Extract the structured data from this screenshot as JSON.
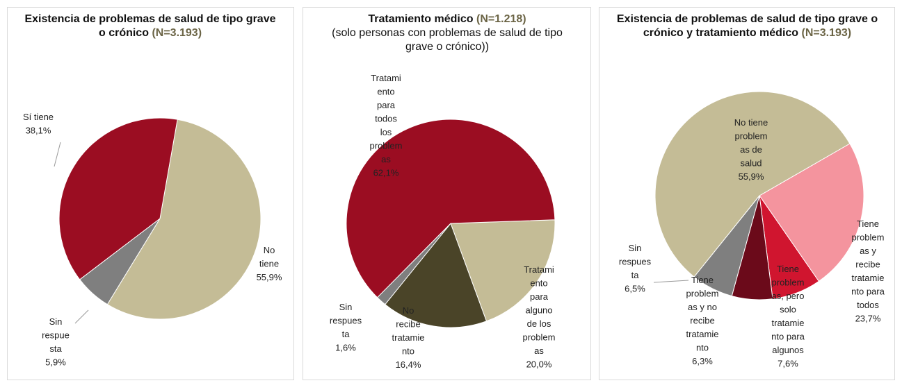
{
  "chart_data": [
    {
      "type": "pie",
      "title": "Existencia de problemas de salud de tipo grave o crónico",
      "sample": "(N=3.193)",
      "categories": [
        "No tiene",
        "Sin respuesta",
        "Sí tiene"
      ],
      "values": [
        55.9,
        5.9,
        38.1
      ],
      "value_labels": [
        "55,9%",
        "5,9%",
        "38,1%"
      ],
      "colors": [
        "#c4bc96",
        "#7f7f7f",
        "#9b0d22"
      ]
    },
    {
      "type": "pie",
      "title": "Tratamiento médico",
      "sample": "(N=1.218)",
      "subtitle": "(solo personas con problemas de salud de tipo grave o crónico))",
      "categories": [
        "Tratamiento para alguno de los problemas",
        "No recibe tratamiento",
        "Sin respuesta",
        "Tratamiento para todos los problemas"
      ],
      "values": [
        20.0,
        16.4,
        1.6,
        62.1
      ],
      "value_labels": [
        "20,0%",
        "16,4%",
        "1,6%",
        "62,1%"
      ],
      "colors": [
        "#c4bc96",
        "#4a4428",
        "#7f7f7f",
        "#9b0d22"
      ]
    },
    {
      "type": "pie",
      "title": "Existencia de problemas de salud de tipo grave o crónico y tratamiento médico",
      "sample": "(N=3.193)",
      "categories": [
        "Tiene problemas y recibe tratamiento para todos",
        "Tiene problemas, pero solo tratamiento para algunos",
        "Tiene problemas y no recibe tratamiento",
        "Sin respuesta",
        "No tiene problemas de salud"
      ],
      "values": [
        23.7,
        7.6,
        6.3,
        6.5,
        55.9
      ],
      "value_labels": [
        "23,7%",
        "7,6%",
        "6,3%",
        "6,5%",
        "55,9%"
      ],
      "colors": [
        "#f4949e",
        "#d0152f",
        "#6b0a1a",
        "#7f7f7f",
        "#c4bc96"
      ]
    }
  ]
}
